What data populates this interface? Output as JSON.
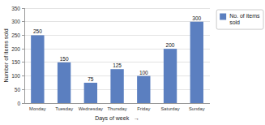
{
  "chart_data": {
    "type": "bar",
    "xlabel": "Days of week   →",
    "ylabel": "Number of items sold",
    "categories": [
      "Monday",
      "Tuesday",
      "Wednesday",
      "Thursday",
      "Friday",
      "Saturday",
      "Sunday"
    ],
    "series": [
      {
        "name": "No. of items\nsold",
        "color": "#5B7FC0",
        "values": [
          250,
          150,
          75,
          125,
          100,
          200,
          300
        ]
      }
    ],
    "ylim": [
      0,
      350
    ],
    "yticks": [
      0,
      50,
      100,
      150,
      200,
      250,
      300,
      350
    ],
    "grid": true,
    "legend": "right",
    "data_labels": true
  }
}
